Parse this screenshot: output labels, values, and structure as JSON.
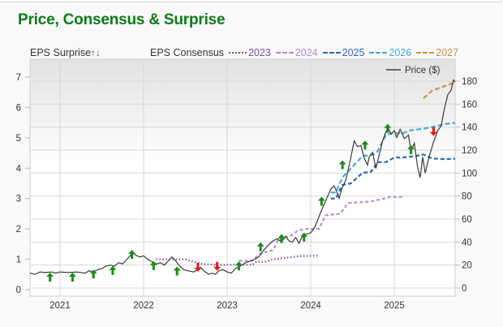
{
  "title": "Price, Consensus & Surprise",
  "legend": {
    "surprise_label": "EPS Surprise",
    "surprise_up_glyph": "↑",
    "surprise_down_glyph": "↓",
    "consensus_label": "EPS Consensus",
    "price_label": "Price ($)"
  },
  "colors": {
    "title": "#0c7a16",
    "price": "#3a3a3a",
    "up": "#1a8a1a",
    "down": "#e21b1b",
    "c2023": "#7b4f9e",
    "c2024": "#b48fcf",
    "c2025": "#2a68b3",
    "c2026": "#47a9d6",
    "c2027": "#c49545",
    "grid": "#d7d7d7"
  },
  "chart_data": {
    "type": "line",
    "title": "Price, Consensus & Surprise",
    "xlabel": "",
    "ylabel_left": "EPS",
    "ylabel_right": "Price ($)",
    "x_ticks": [
      "2021",
      "2022",
      "2023",
      "2024",
      "2025"
    ],
    "x_range": [
      2020.64,
      2025.8
    ],
    "y_left_ticks": [
      "0",
      "1",
      "2",
      "3",
      "4",
      "5",
      "6",
      "7"
    ],
    "y_left_range": [
      -0.2,
      7.6
    ],
    "y_right_ticks": [
      "0",
      "20",
      "40",
      "60",
      "80",
      "100",
      "120",
      "140",
      "160",
      "180"
    ],
    "y_right_range": [
      -7,
      198
    ],
    "grid": true,
    "legend_position": "top",
    "price": {
      "name": "Price ($)",
      "axis": "right",
      "points": [
        [
          2020.64,
          13
        ],
        [
          2020.7,
          12
        ],
        [
          2020.76,
          14
        ],
        [
          2020.82,
          13.5
        ],
        [
          2020.9,
          14
        ],
        [
          2020.95,
          13
        ],
        [
          2021.0,
          14
        ],
        [
          2021.1,
          13.5
        ],
        [
          2021.2,
          14
        ],
        [
          2021.3,
          13
        ],
        [
          2021.35,
          15
        ],
        [
          2021.4,
          14
        ],
        [
          2021.45,
          16
        ],
        [
          2021.5,
          17
        ],
        [
          2021.55,
          19
        ],
        [
          2021.6,
          20
        ],
        [
          2021.65,
          19
        ],
        [
          2021.7,
          22
        ],
        [
          2021.75,
          21
        ],
        [
          2021.8,
          25
        ],
        [
          2021.85,
          29
        ],
        [
          2021.88,
          30
        ],
        [
          2021.92,
          28
        ],
        [
          2021.96,
          27
        ],
        [
          2022.0,
          28
        ],
        [
          2022.05,
          25
        ],
        [
          2022.1,
          23
        ],
        [
          2022.15,
          21
        ],
        [
          2022.2,
          22
        ],
        [
          2022.25,
          20
        ],
        [
          2022.3,
          24
        ],
        [
          2022.34,
          27
        ],
        [
          2022.38,
          24
        ],
        [
          2022.42,
          20
        ],
        [
          2022.48,
          16
        ],
        [
          2022.53,
          15
        ],
        [
          2022.6,
          14
        ],
        [
          2022.65,
          16
        ],
        [
          2022.68,
          18
        ],
        [
          2022.72,
          15
        ],
        [
          2022.78,
          12
        ],
        [
          2022.82,
          13
        ],
        [
          2022.86,
          12
        ],
        [
          2022.9,
          15
        ],
        [
          2022.95,
          16
        ],
        [
          2023.0,
          14
        ],
        [
          2023.05,
          13
        ],
        [
          2023.1,
          17
        ],
        [
          2023.15,
          19
        ],
        [
          2023.22,
          22
        ],
        [
          2023.3,
          24
        ],
        [
          2023.38,
          27
        ],
        [
          2023.45,
          34
        ],
        [
          2023.5,
          38
        ],
        [
          2023.55,
          41
        ],
        [
          2023.6,
          43
        ],
        [
          2023.65,
          40
        ],
        [
          2023.7,
          45
        ],
        [
          2023.74,
          41
        ],
        [
          2023.78,
          40
        ],
        [
          2023.82,
          44
        ],
        [
          2023.86,
          39
        ],
        [
          2023.9,
          45
        ],
        [
          2023.95,
          47
        ],
        [
          2024.0,
          48
        ],
        [
          2024.05,
          53
        ],
        [
          2024.12,
          66
        ],
        [
          2024.18,
          76
        ],
        [
          2024.24,
          86
        ],
        [
          2024.28,
          89
        ],
        [
          2024.31,
          84
        ],
        [
          2024.34,
          78
        ],
        [
          2024.37,
          86
        ],
        [
          2024.42,
          94
        ],
        [
          2024.47,
          110
        ],
        [
          2024.52,
          128
        ],
        [
          2024.56,
          123
        ],
        [
          2024.6,
          124
        ],
        [
          2024.64,
          113
        ],
        [
          2024.68,
          107
        ],
        [
          2024.7,
          114
        ],
        [
          2024.74,
          118
        ],
        [
          2024.78,
          104
        ],
        [
          2024.82,
          116
        ],
        [
          2024.86,
          128
        ],
        [
          2024.9,
          136
        ],
        [
          2024.93,
          139
        ],
        [
          2024.96,
          134
        ],
        [
          2025.0,
          137
        ],
        [
          2025.03,
          131
        ],
        [
          2025.07,
          138
        ],
        [
          2025.12,
          130
        ],
        [
          2025.17,
          133
        ],
        [
          2025.2,
          119
        ],
        [
          2025.24,
          126
        ],
        [
          2025.28,
          105
        ],
        [
          2025.31,
          96
        ],
        [
          2025.34,
          114
        ],
        [
          2025.37,
          100
        ],
        [
          2025.42,
          115
        ],
        [
          2025.47,
          127
        ],
        [
          2025.52,
          137
        ],
        [
          2025.56,
          141
        ],
        [
          2025.6,
          156
        ],
        [
          2025.64,
          168
        ],
        [
          2025.68,
          172
        ],
        [
          2025.71,
          181
        ],
        [
          2025.75,
          177
        ]
      ]
    },
    "consensus": [
      {
        "name": "2023",
        "axis": "left",
        "color_key": "c2023",
        "dash": "1.5,2.5",
        "points": [
          [
            2022.15,
            1.0
          ],
          [
            2022.5,
            1.0
          ],
          [
            2022.62,
            0.9
          ],
          [
            2022.7,
            0.85
          ],
          [
            2022.85,
            0.82
          ],
          [
            2023.3,
            0.82
          ],
          [
            2023.35,
            0.92
          ],
          [
            2023.45,
            0.92
          ],
          [
            2023.55,
            1.0
          ],
          [
            2023.7,
            1.05
          ],
          [
            2023.85,
            1.1
          ],
          [
            2024.1,
            1.12
          ]
        ]
      },
      {
        "name": "2024",
        "axis": "left",
        "color_key": "c2024",
        "dash": "4,3",
        "points": [
          [
            2023.14,
            0.95
          ],
          [
            2023.3,
            0.95
          ],
          [
            2023.4,
            1.2
          ],
          [
            2023.55,
            1.3
          ],
          [
            2023.62,
            1.7
          ],
          [
            2023.75,
            1.75
          ],
          [
            2023.85,
            1.95
          ],
          [
            2023.95,
            2.0
          ],
          [
            2024.1,
            2.0
          ],
          [
            2024.18,
            2.45
          ],
          [
            2024.35,
            2.5
          ],
          [
            2024.45,
            2.85
          ],
          [
            2024.7,
            2.9
          ],
          [
            2024.8,
            2.95
          ],
          [
            2024.95,
            3.05
          ],
          [
            2025.1,
            3.05
          ]
        ]
      },
      {
        "name": "2025",
        "axis": "left",
        "color_key": "c2025",
        "dash": "5,3",
        "points": [
          [
            2024.24,
            3.0
          ],
          [
            2024.3,
            3.0
          ],
          [
            2024.38,
            3.45
          ],
          [
            2024.48,
            3.5
          ],
          [
            2024.62,
            3.85
          ],
          [
            2024.72,
            3.88
          ],
          [
            2024.8,
            4.2
          ],
          [
            2024.9,
            4.2
          ],
          [
            2025.0,
            4.35
          ],
          [
            2025.1,
            4.35
          ],
          [
            2025.25,
            4.4
          ],
          [
            2025.35,
            4.45
          ],
          [
            2025.45,
            4.32
          ],
          [
            2025.6,
            4.3
          ],
          [
            2025.8,
            4.32
          ]
        ]
      },
      {
        "name": "2026",
        "axis": "left",
        "color_key": "c2026",
        "dash": "6,3",
        "points": [
          [
            2024.24,
            3.2
          ],
          [
            2024.3,
            3.2
          ],
          [
            2024.38,
            3.7
          ],
          [
            2024.5,
            4.05
          ],
          [
            2024.62,
            4.4
          ],
          [
            2024.75,
            4.45
          ],
          [
            2024.8,
            4.55
          ],
          [
            2024.9,
            5.1
          ],
          [
            2025.0,
            5.15
          ],
          [
            2025.1,
            5.15
          ],
          [
            2025.2,
            5.25
          ],
          [
            2025.35,
            5.3
          ],
          [
            2025.45,
            5.35
          ],
          [
            2025.6,
            5.45
          ],
          [
            2025.8,
            5.52
          ]
        ]
      },
      {
        "name": "2027",
        "axis": "left",
        "color_key": "c2027",
        "dash": "6,3",
        "points": [
          [
            2025.35,
            6.3
          ],
          [
            2025.45,
            6.55
          ],
          [
            2025.55,
            6.65
          ],
          [
            2025.65,
            6.75
          ],
          [
            2025.75,
            6.85
          ]
        ]
      }
    ],
    "surprises": [
      {
        "x": 2020.88,
        "eps": 0.4,
        "type": "up"
      },
      {
        "x": 2021.15,
        "eps": 0.4,
        "type": "up"
      },
      {
        "x": 2021.4,
        "eps": 0.5,
        "type": "up"
      },
      {
        "x": 2021.63,
        "eps": 0.62,
        "type": "up"
      },
      {
        "x": 2021.86,
        "eps": 1.15,
        "type": "up"
      },
      {
        "x": 2022.12,
        "eps": 0.78,
        "type": "up"
      },
      {
        "x": 2022.4,
        "eps": 0.6,
        "type": "up"
      },
      {
        "x": 2022.65,
        "eps": 0.75,
        "type": "down"
      },
      {
        "x": 2022.88,
        "eps": 0.78,
        "type": "down"
      },
      {
        "x": 2023.14,
        "eps": 0.77,
        "type": "up"
      },
      {
        "x": 2023.4,
        "eps": 1.4,
        "type": "up"
      },
      {
        "x": 2023.65,
        "eps": 1.67,
        "type": "up"
      },
      {
        "x": 2023.92,
        "eps": 1.72,
        "type": "up"
      },
      {
        "x": 2024.13,
        "eps": 2.9,
        "type": "up"
      },
      {
        "x": 2024.38,
        "eps": 4.1,
        "type": "up"
      },
      {
        "x": 2024.65,
        "eps": 4.75,
        "type": "up"
      },
      {
        "x": 2024.92,
        "eps": 5.3,
        "type": "up"
      },
      {
        "x": 2025.2,
        "eps": 4.6,
        "type": "up"
      },
      {
        "x": 2025.47,
        "eps": 5.22,
        "type": "down"
      }
    ]
  }
}
